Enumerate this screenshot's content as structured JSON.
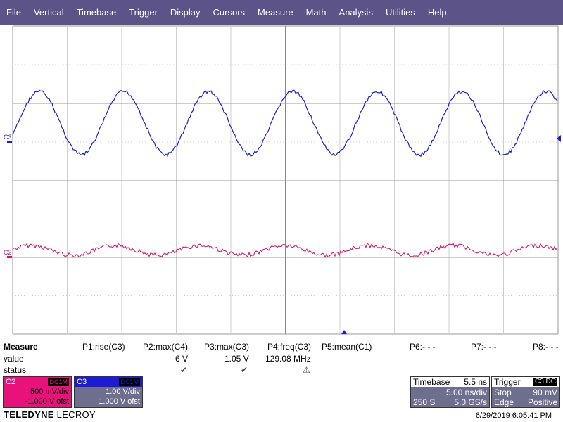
{
  "menu": [
    "File",
    "Vertical",
    "Timebase",
    "Trigger",
    "Display",
    "Cursors",
    "Measure",
    "Math",
    "Analysis",
    "Utilities",
    "Help"
  ],
  "traces": {
    "c3": {
      "label": "C3",
      "color": "#1c1cd6",
      "frequency_mhz": 129.08
    },
    "c2": {
      "label": "C2",
      "color": "#d0186e"
    }
  },
  "measure": {
    "title": "Measure",
    "row_labels": {
      "value": "value",
      "status": "status"
    },
    "params": [
      {
        "name": "P1:rise(C3)",
        "value": "",
        "status": ""
      },
      {
        "name": "P2:max(C4)",
        "value": "6 V",
        "status": "✔"
      },
      {
        "name": "P3:max(C3)",
        "value": "1.05 V",
        "status": "✔"
      },
      {
        "name": "P4:freq(C3)",
        "value": "129.08 MHz",
        "status": "⚠"
      },
      {
        "name": "P5:mean(C1)",
        "value": "",
        "status": ""
      },
      {
        "name": "P6:- - -",
        "value": "",
        "status": ""
      },
      {
        "name": "P7:- - -",
        "value": "",
        "status": ""
      },
      {
        "name": "P8:- - -",
        "value": "",
        "status": ""
      }
    ]
  },
  "channels": {
    "c2": {
      "name": "C2",
      "coupling": "DC1M",
      "scale": "500 mV/div",
      "offset": "-1.000 V ofst"
    },
    "c3": {
      "name": "C3",
      "coupling": "DC1M",
      "scale": "1.00 V/div",
      "offset": "1.000 V ofst"
    }
  },
  "timebase": {
    "title": "Timebase",
    "delay": "5.5 ns",
    "scale": "5.00 ns/div",
    "samples": "250 S",
    "rate": "5.0 GS/s"
  },
  "trigger": {
    "title": "Trigger",
    "source": "C3 DC",
    "mode": "Stop",
    "level": "90 mV",
    "type": "Edge",
    "slope": "Positive"
  },
  "brand": {
    "bold": "TELEDYNE",
    "light": " LECROY"
  },
  "datetime": "6/29/2019 6:05:41 PM"
}
